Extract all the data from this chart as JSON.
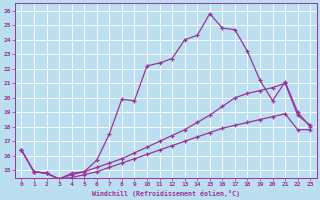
{
  "xlabel": "Windchill (Refroidissement éolien,°C)",
  "xlim": [
    -0.5,
    23.5
  ],
  "ylim": [
    14.5,
    26.5
  ],
  "xticks": [
    0,
    1,
    2,
    3,
    4,
    5,
    6,
    7,
    8,
    9,
    10,
    11,
    12,
    13,
    14,
    15,
    16,
    17,
    18,
    19,
    20,
    21,
    22,
    23
  ],
  "yticks": [
    15,
    16,
    17,
    18,
    19,
    20,
    21,
    22,
    23,
    24,
    25,
    26
  ],
  "background_color": "#bbdff0",
  "line_color": "#993399",
  "grid_color": "#ffffff",
  "line1_x": [
    0,
    1,
    2,
    3,
    4,
    5,
    6,
    7,
    8,
    9,
    10,
    11,
    12,
    13,
    14,
    15,
    16,
    17,
    18,
    19,
    20,
    21,
    22,
    23
  ],
  "line1_y": [
    16.4,
    14.9,
    14.8,
    14.4,
    14.8,
    14.9,
    15.7,
    17.5,
    19.9,
    19.8,
    22.2,
    22.4,
    22.7,
    24.0,
    24.3,
    25.8,
    24.8,
    24.7,
    23.2,
    21.2,
    19.8,
    21.1,
    19.0,
    18.0
  ],
  "line2_x": [
    0,
    1,
    2,
    3,
    4,
    5,
    6,
    7,
    8,
    9,
    10,
    11,
    12,
    13,
    14,
    15,
    16,
    17,
    18,
    19,
    20,
    21,
    22,
    23
  ],
  "line2_y": [
    16.4,
    14.9,
    14.8,
    14.4,
    14.7,
    14.9,
    15.2,
    15.5,
    15.8,
    16.2,
    16.6,
    17.0,
    17.4,
    17.8,
    18.3,
    18.8,
    19.4,
    20.0,
    20.3,
    20.5,
    20.7,
    21.0,
    18.8,
    18.1
  ],
  "line3_x": [
    0,
    1,
    2,
    3,
    4,
    5,
    6,
    7,
    8,
    9,
    10,
    11,
    12,
    13,
    14,
    15,
    16,
    17,
    18,
    19,
    20,
    21,
    22,
    23
  ],
  "line3_y": [
    16.4,
    14.9,
    14.8,
    14.4,
    14.5,
    14.7,
    14.9,
    15.2,
    15.5,
    15.8,
    16.1,
    16.4,
    16.7,
    17.0,
    17.3,
    17.6,
    17.9,
    18.1,
    18.3,
    18.5,
    18.7,
    18.9,
    17.8,
    17.8
  ]
}
